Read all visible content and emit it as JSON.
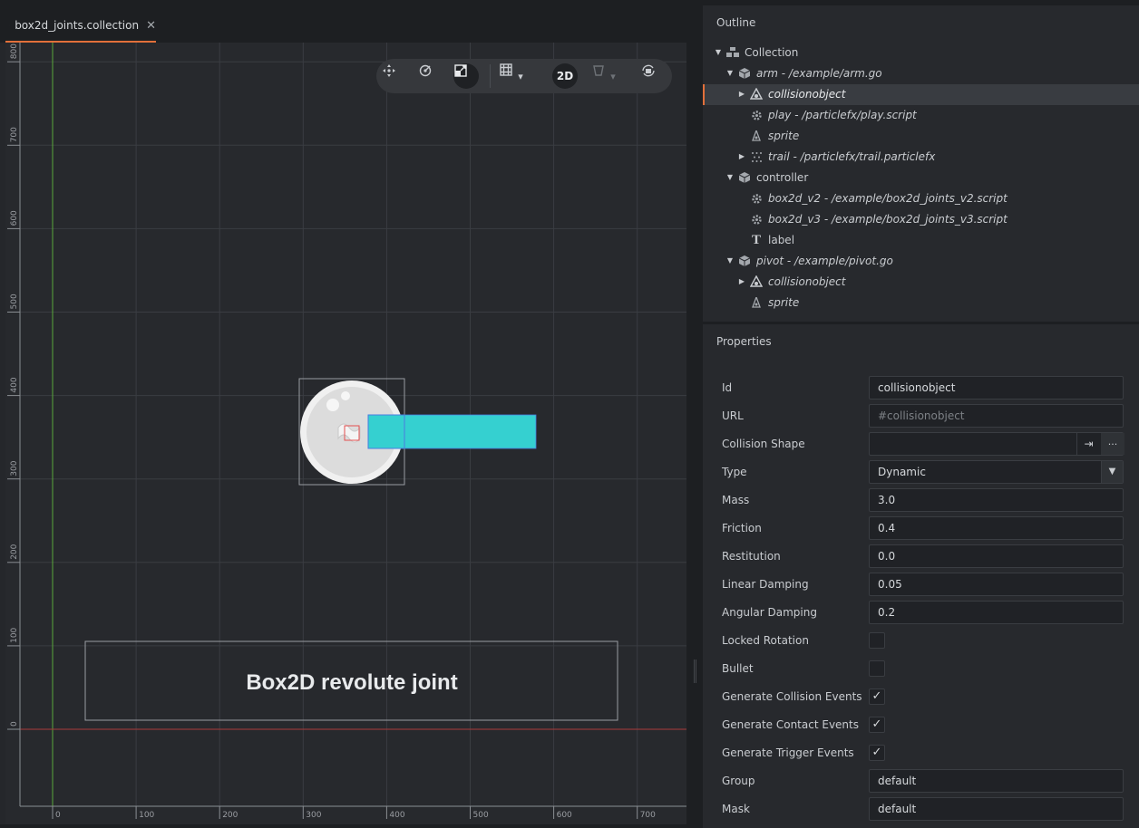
{
  "tab": {
    "title": "box2d_joints.collection",
    "close": "✕"
  },
  "toolbar": {
    "mode_label": "2D",
    "grid_arrow": "▾",
    "visibility_arrow": "▾"
  },
  "viewport": {
    "x_ticks": [
      "0",
      "100",
      "200",
      "300",
      "400",
      "500",
      "600",
      "700"
    ],
    "y_ticks": [
      "0",
      "100",
      "200",
      "300",
      "400",
      "500",
      "600",
      "700",
      "800"
    ],
    "label_text": "Box2D revolute joint",
    "colors": {
      "arm": "#35d0d0",
      "x_axis": "#a83a3a",
      "y_axis": "#5aa83a"
    }
  },
  "outline": {
    "title": "Outline",
    "items": [
      {
        "label": "Collection",
        "icon": "collection-icon",
        "italic": false
      },
      {
        "label": "arm - /example/arm.go",
        "icon": "gameobject-icon",
        "italic": true
      },
      {
        "label": "collisionobject",
        "icon": "collision-icon",
        "italic": true,
        "selected": true
      },
      {
        "label": "play - /particlefx/play.script",
        "icon": "script-icon",
        "italic": true
      },
      {
        "label": "sprite",
        "icon": "sprite-icon",
        "italic": true
      },
      {
        "label": "trail - /particlefx/trail.particlefx",
        "icon": "particlefx-icon",
        "italic": true
      },
      {
        "label": "controller",
        "icon": "gameobject-icon",
        "italic": false
      },
      {
        "label": "box2d_v2 - /example/box2d_joints_v2.script",
        "icon": "script-icon",
        "italic": true
      },
      {
        "label": "box2d_v3 - /example/box2d_joints_v3.script",
        "icon": "script-icon",
        "italic": true
      },
      {
        "label": "label",
        "icon": "label-icon",
        "italic": false
      },
      {
        "label": "pivot - /example/pivot.go",
        "icon": "gameobject-icon",
        "italic": true
      },
      {
        "label": "collisionobject",
        "icon": "collision-icon",
        "italic": true
      },
      {
        "label": "sprite",
        "icon": "sprite-icon",
        "italic": true
      }
    ]
  },
  "properties": {
    "title": "Properties",
    "id": {
      "label": "Id",
      "value": "collisionobject"
    },
    "url": {
      "label": "URL",
      "placeholder": "#collisionobject"
    },
    "collision_shape": {
      "label": "Collision Shape",
      "value": "",
      "browse": "..."
    },
    "type": {
      "label": "Type",
      "value": "Dynamic"
    },
    "mass": {
      "label": "Mass",
      "value": "3.0"
    },
    "friction": {
      "label": "Friction",
      "value": "0.4"
    },
    "restitution": {
      "label": "Restitution",
      "value": "0.0"
    },
    "linear_damping": {
      "label": "Linear Damping",
      "value": "0.05"
    },
    "angular_damping": {
      "label": "Angular Damping",
      "value": "0.2"
    },
    "locked_rotation": {
      "label": "Locked Rotation",
      "checked": false
    },
    "bullet": {
      "label": "Bullet",
      "checked": false
    },
    "gen_collision": {
      "label": "Generate Collision Events",
      "checked": true
    },
    "gen_contact": {
      "label": "Generate Contact Events",
      "checked": true
    },
    "gen_trigger": {
      "label": "Generate Trigger Events",
      "checked": true
    },
    "group": {
      "label": "Group",
      "value": "default"
    },
    "mask": {
      "label": "Mask",
      "value": "default"
    },
    "check_mark": "✓"
  }
}
